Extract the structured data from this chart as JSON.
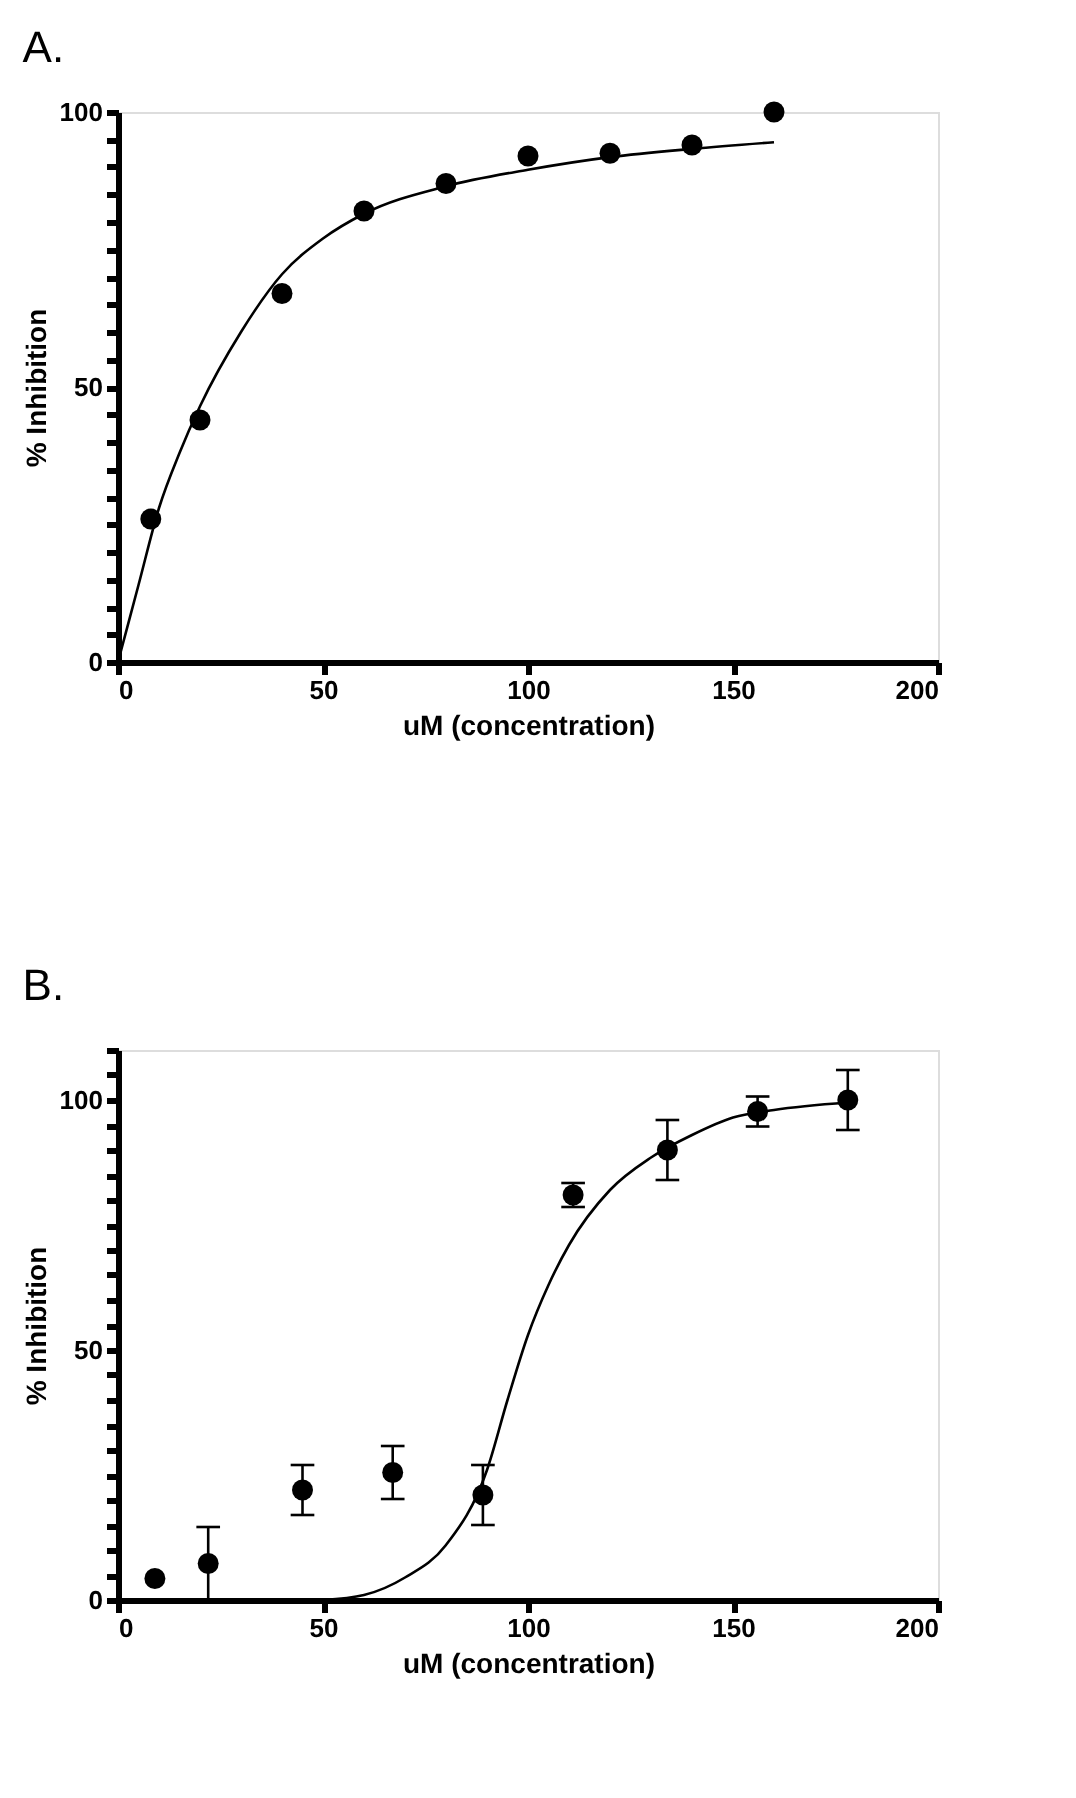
{
  "chart_data": [
    {
      "type": "scatter",
      "title": "A.",
      "xlabel": "uM (concentration)",
      "ylabel": "% Inhibition",
      "marker": "circle",
      "grid": false,
      "xlim": [
        0,
        200
      ],
      "xticks": [
        0,
        50,
        100,
        150,
        200
      ],
      "ylim": [
        0,
        100
      ],
      "yticks": [
        0,
        {
          "value": 5,
          "label": null
        },
        {
          "value": 10,
          "label": null
        },
        {
          "value": 15,
          "label": null
        },
        {
          "value": 20,
          "label": null
        },
        {
          "value": 25,
          "label": null
        },
        {
          "value": 30,
          "label": null
        },
        {
          "value": 35,
          "label": null
        },
        {
          "value": 40,
          "label": null
        },
        {
          "value": 45,
          "label": null
        },
        50,
        {
          "value": 55,
          "label": null
        },
        {
          "value": 60,
          "label": null
        },
        {
          "value": 65,
          "label": null
        },
        {
          "value": 70,
          "label": null
        },
        {
          "value": 75,
          "label": null
        },
        {
          "value": 80,
          "label": null
        },
        {
          "value": 85,
          "label": null
        },
        {
          "value": 90,
          "label": null
        },
        {
          "value": 95,
          "label": null
        },
        100
      ],
      "series": [
        {
          "color": "#000000",
          "x": [
            8,
            20,
            40,
            60,
            80,
            100,
            120,
            140,
            160
          ],
          "values": [
            26,
            44,
            67,
            82,
            87,
            92,
            92.5,
            94,
            100
          ]
        },
        {
          "type": "line",
          "color": "#000000",
          "line_style": "solid",
          "marker": "none",
          "x": [
            0,
            5,
            10,
            15,
            20,
            30,
            40,
            50,
            60,
            80,
            100,
            120,
            140,
            160
          ],
          "values": [
            0,
            14,
            28,
            38,
            46.5,
            60,
            70.5,
            77,
            81.5,
            86.5,
            89.5,
            91.8,
            93.3,
            94.5
          ]
        }
      ]
    },
    {
      "type": "scatter",
      "title": "B.",
      "xlabel": "uM (concentration)",
      "ylabel": "% Inhibition",
      "marker": "circle",
      "grid": false,
      "xlim": [
        0,
        200
      ],
      "xticks": [
        0,
        50,
        100,
        150,
        200
      ],
      "ylim": [
        0,
        110
      ],
      "yticks": [
        0,
        {
          "value": 5,
          "label": null
        },
        {
          "value": 10,
          "label": null
        },
        {
          "value": 15,
          "label": null
        },
        {
          "value": 20,
          "label": null
        },
        {
          "value": 25,
          "label": null
        },
        {
          "value": 30,
          "label": null
        },
        {
          "value": 35,
          "label": null
        },
        {
          "value": 40,
          "label": null
        },
        {
          "value": 45,
          "label": null
        },
        50,
        {
          "value": 55,
          "label": null
        },
        {
          "value": 60,
          "label": null
        },
        {
          "value": 65,
          "label": null
        },
        {
          "value": 70,
          "label": null
        },
        {
          "value": 75,
          "label": null
        },
        {
          "value": 80,
          "label": null
        },
        {
          "value": 85,
          "label": null
        },
        {
          "value": 90,
          "label": null
        },
        {
          "value": 95,
          "label": null
        },
        100,
        {
          "value": 105,
          "label": null
        },
        {
          "value": 110,
          "label": null
        }
      ],
      "series": [
        {
          "color": "#000000",
          "x": [
            9,
            22,
            45,
            67,
            89,
            111,
            134,
            156,
            178
          ],
          "values": [
            4.3,
            7.3,
            22,
            25.5,
            21,
            81,
            90,
            97.7,
            100
          ],
          "errors": [
            null,
            7.3,
            5,
            5.3,
            6,
            2.4,
            6,
            3,
            6
          ]
        },
        {
          "type": "line",
          "color": "#000000",
          "line_style": "solid",
          "marker": "none",
          "x": [
            50,
            60,
            70,
            80,
            90,
            95,
            100,
            105,
            110,
            120,
            130,
            140,
            150,
            160,
            178
          ],
          "values": [
            0,
            1,
            4.5,
            11,
            26,
            40,
            53,
            63,
            71,
            82,
            88.5,
            93,
            96.5,
            98,
            99.5
          ]
        }
      ]
    }
  ]
}
